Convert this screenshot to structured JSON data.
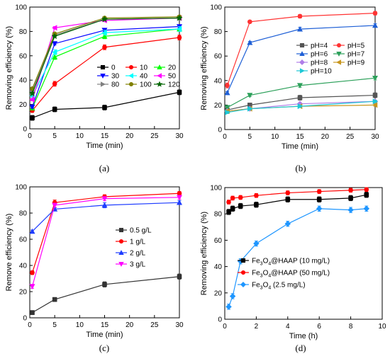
{
  "chart_data": [
    {
      "type": "line",
      "panel_label": "(a)",
      "xlabel": "Time (min)",
      "ylabel": "Removing efficiency (%)",
      "xlim": [
        0,
        30
      ],
      "ylim": [
        0,
        100
      ],
      "xticks": [
        0,
        5,
        10,
        15,
        20,
        25,
        30
      ],
      "yticks": [
        0,
        20,
        40,
        60,
        80,
        100
      ],
      "legend_position": "right-middle",
      "legend_columns": 3,
      "x": [
        0.5,
        5,
        15,
        30
      ],
      "series": [
        {
          "name": "0",
          "color": "#000000",
          "marker": "square",
          "values": [
            9,
            16,
            17.5,
            30
          ],
          "errors": [
            2,
            2,
            2,
            2
          ]
        },
        {
          "name": "10",
          "color": "#ff0000",
          "marker": "circle",
          "values": [
            15,
            37,
            67,
            75
          ],
          "errors": [
            1.5,
            2,
            2,
            2
          ]
        },
        {
          "name": "20",
          "color": "#00ff00",
          "marker": "triangle-up",
          "values": [
            17,
            59,
            76,
            82
          ],
          "errors": [
            1,
            2,
            2,
            2
          ]
        },
        {
          "name": "30",
          "color": "#0000ff",
          "marker": "triangle-down",
          "values": [
            18,
            70,
            81,
            84
          ],
          "errors": [
            1,
            1,
            1,
            1
          ]
        },
        {
          "name": "40",
          "color": "#00ffff",
          "marker": "triangle-left",
          "values": [
            27,
            63,
            79,
            82
          ],
          "errors": [
            1,
            2,
            2,
            2
          ]
        },
        {
          "name": "50",
          "color": "#ff00ff",
          "marker": "triangle-left",
          "values": [
            24,
            83,
            89,
            91
          ],
          "errors": [
            1,
            1,
            1,
            1
          ]
        },
        {
          "name": "80",
          "color": "#808080",
          "marker": "triangle-right",
          "values": [
            31,
            77,
            90,
            91
          ],
          "errors": [
            1,
            1,
            1,
            1
          ]
        },
        {
          "name": "100",
          "color": "#808000",
          "marker": "circle",
          "values": [
            33,
            78,
            91,
            92
          ],
          "errors": [
            1,
            1,
            1,
            1
          ]
        },
        {
          "name": "120",
          "color": "#006400",
          "marker": "star",
          "values": [
            29,
            76,
            90,
            91
          ],
          "errors": [
            1,
            1,
            1,
            1
          ]
        }
      ]
    },
    {
      "type": "line",
      "panel_label": "(b)",
      "xlabel": "Time (min)",
      "ylabel": "Removing efficiency (%)",
      "xlim": [
        0,
        30
      ],
      "ylim": [
        0,
        100
      ],
      "xticks": [
        0,
        5,
        10,
        15,
        20,
        25,
        30
      ],
      "yticks": [
        0,
        20,
        40,
        60,
        80,
        100
      ],
      "legend_position": "right-middle",
      "legend_columns": 2,
      "x": [
        0.5,
        5,
        15,
        30
      ],
      "series": [
        {
          "name": "pH=4",
          "color": "#555555",
          "marker": "square",
          "values": [
            16,
            20,
            26,
            28
          ],
          "errors": [
            1.5,
            1.5,
            2,
            2
          ]
        },
        {
          "name": "pH=5",
          "color": "#ff3333",
          "marker": "circle",
          "values": [
            36,
            88,
            92.5,
            95
          ],
          "errors": [
            2,
            1,
            1.5,
            1.5
          ]
        },
        {
          "name": "pH=6",
          "color": "#1e5fd6",
          "marker": "triangle-up",
          "values": [
            30,
            71,
            82,
            85
          ],
          "errors": [
            1,
            1,
            1.5,
            1.5
          ]
        },
        {
          "name": "pH=7",
          "color": "#2ca05a",
          "marker": "triangle-down",
          "values": [
            18,
            28,
            36,
            42
          ],
          "errors": [
            1,
            1,
            1.5,
            1.5
          ]
        },
        {
          "name": "pH=8",
          "color": "#b07ee8",
          "marker": "diamond",
          "values": [
            15,
            17,
            21,
            23
          ],
          "errors": [
            1,
            1,
            1,
            1
          ]
        },
        {
          "name": "pH=9",
          "color": "#c8961e",
          "marker": "triangle-left",
          "values": [
            15,
            17,
            19,
            20
          ],
          "errors": [
            1,
            1,
            1,
            1
          ]
        },
        {
          "name": "pH=10",
          "color": "#1ec8d6",
          "marker": "triangle-right",
          "values": [
            14,
            17,
            19,
            23
          ],
          "errors": [
            1,
            1,
            1,
            1
          ]
        }
      ]
    },
    {
      "type": "line",
      "panel_label": "(c)",
      "xlabel": "Time (min)",
      "ylabel": "Remove efficiency (%)",
      "xlim": [
        0,
        30
      ],
      "ylim": [
        0,
        100
      ],
      "xticks": [
        0,
        5,
        10,
        15,
        20,
        25,
        30
      ],
      "yticks": [
        0,
        20,
        40,
        60,
        80,
        100
      ],
      "legend_position": "right-middle",
      "legend_columns": 1,
      "x": [
        0.5,
        5,
        15,
        30
      ],
      "series": [
        {
          "name": "0.5 g/L",
          "color": "#333333",
          "marker": "square",
          "values": [
            4,
            14,
            25.5,
            31.5
          ],
          "errors": [
            1.5,
            1.5,
            2,
            2
          ]
        },
        {
          "name": "1 g/L",
          "color": "#ff0000",
          "marker": "circle",
          "values": [
            34.5,
            88,
            92.5,
            95
          ],
          "errors": [
            1.5,
            2,
            1.5,
            1.5
          ]
        },
        {
          "name": "2 g/L",
          "color": "#1e3cff",
          "marker": "triangle-up",
          "values": [
            66,
            83,
            86,
            88
          ],
          "errors": [
            1,
            1,
            2,
            1.5
          ]
        },
        {
          "name": "3 g/L",
          "color": "#ff00ff",
          "marker": "triangle-down",
          "values": [
            24,
            86,
            91,
            92
          ],
          "errors": [
            1.5,
            1.5,
            1.5,
            1.5
          ]
        }
      ]
    },
    {
      "type": "line",
      "panel_label": "(d)",
      "xlabel": "Time (h)",
      "ylabel": "Removing efficiency (%)",
      "xlim": [
        0,
        10
      ],
      "ylim": [
        0,
        100
      ],
      "xticks": [
        0,
        2,
        4,
        6,
        8,
        10
      ],
      "yticks": [
        0,
        20,
        40,
        60,
        80,
        100
      ],
      "legend_position": "right-middle",
      "legend_columns": 1,
      "series": [
        {
          "name": "Fe3O4@HAAP (10 mg/L)",
          "legend_main": "Fe",
          "legend_sub": [
            "3",
            "4"
          ],
          "legend_mid": "O",
          "legend_tail": "@HAAP (10 mg/L)",
          "color": "#000000",
          "marker": "square",
          "x": [
            0.25,
            0.5,
            1,
            2,
            4,
            6,
            8,
            9
          ],
          "values": [
            81.5,
            84,
            86,
            87,
            91,
            91,
            92,
            94.5
          ],
          "errors": [
            2,
            2,
            2,
            2,
            2,
            2,
            2,
            2
          ]
        },
        {
          "name": "Fe3O4@HAAP (50 mg/L)",
          "legend_main": "Fe",
          "legend_sub": [
            "3",
            "4"
          ],
          "legend_mid": "O",
          "legend_tail": "@HAAP (50 mg/L)",
          "color": "#ff0000",
          "marker": "circle",
          "x": [
            0.25,
            0.5,
            1,
            2,
            4,
            6,
            8,
            9
          ],
          "values": [
            89,
            92,
            92.5,
            94,
            96,
            97,
            98,
            98.5
          ],
          "errors": [
            1.5,
            1.5,
            1.5,
            1.5,
            1.5,
            1.5,
            1.5,
            1.5
          ]
        },
        {
          "name": "Fe3O4 (2.5 mg/L)",
          "legend_main": "Fe",
          "legend_sub": [
            "3",
            "4"
          ],
          "legend_mid": "O",
          "legend_tail": " (2.5 mg/L)",
          "color": "#1e96ff",
          "marker": "diamond",
          "x": [
            0.25,
            0.5,
            1,
            2,
            4,
            6,
            8,
            9
          ],
          "values": [
            9.5,
            17.5,
            44,
            57.5,
            72.5,
            84,
            83,
            84
          ],
          "errors": [
            2,
            2,
            2,
            2,
            2,
            2,
            2,
            2
          ]
        }
      ]
    }
  ]
}
